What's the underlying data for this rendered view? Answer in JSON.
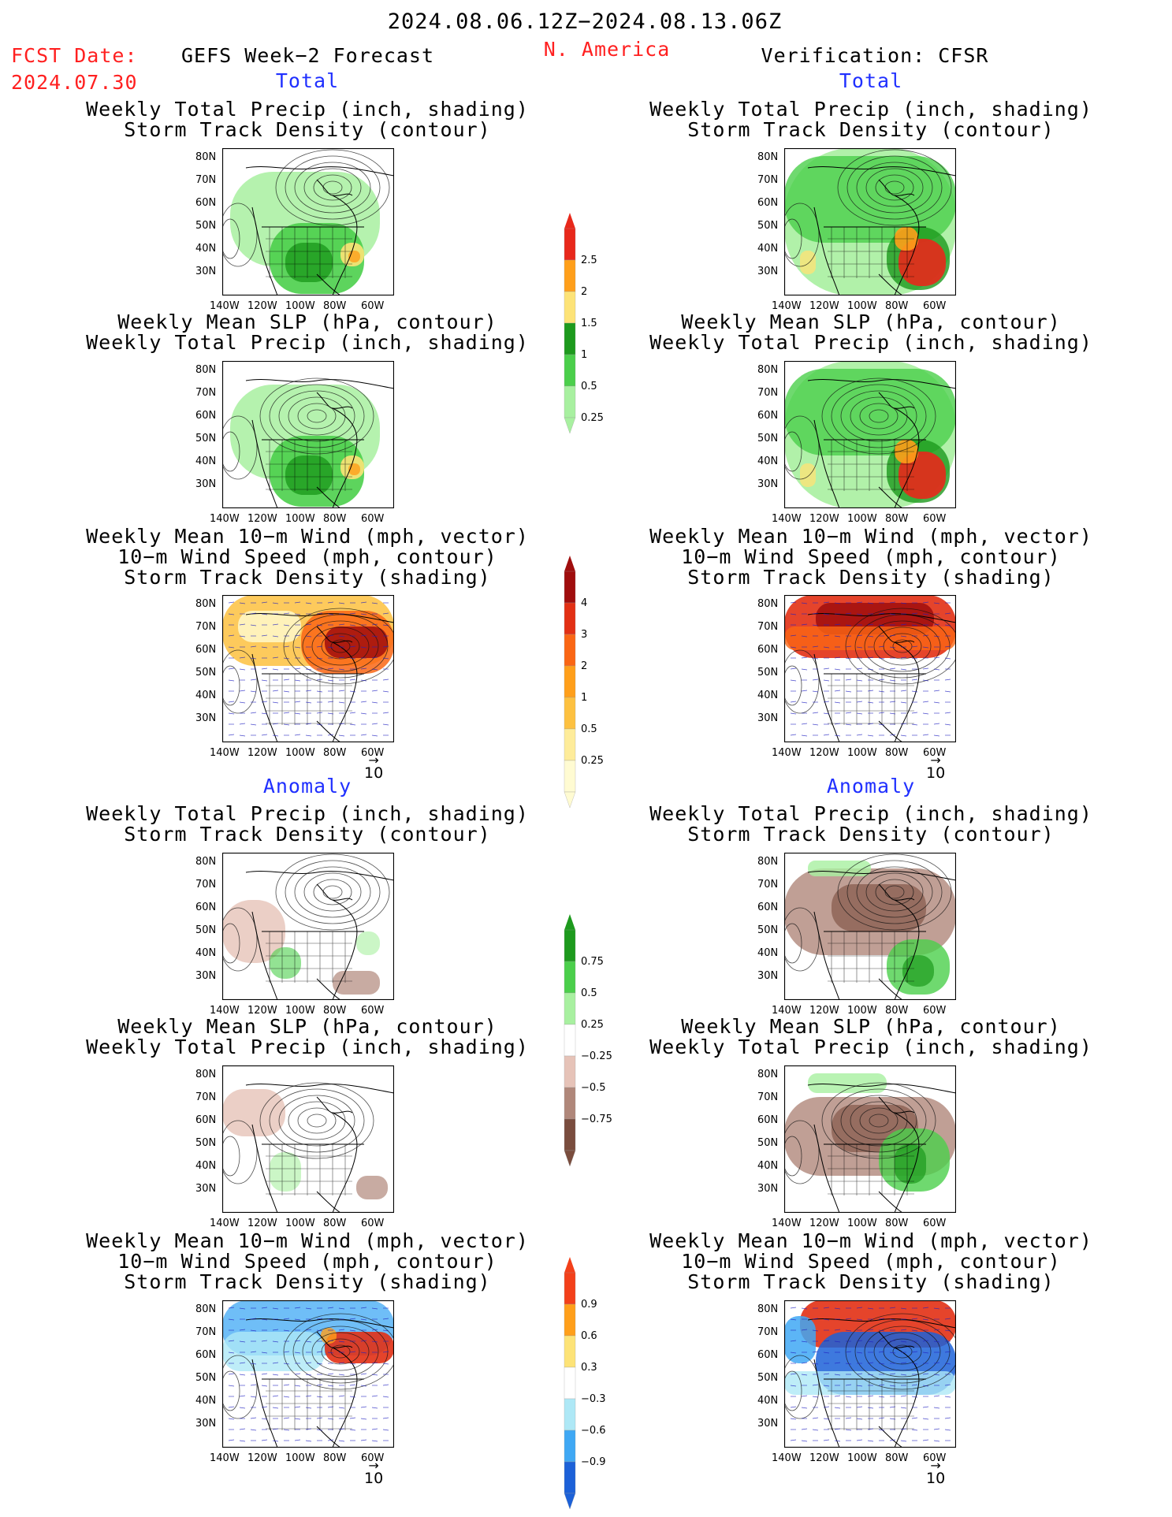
{
  "header": {
    "date_range": "2024.08.06.12Z−2024.08.13.06Z",
    "fcst_label": "FCST Date:",
    "fcst_date": "2024.07.30",
    "left_title": "GEFS Week−2 Forecast",
    "region": "N. America",
    "right_title": "Verification: CFSR"
  },
  "sections": {
    "total": "Total",
    "anomaly": "Anomaly"
  },
  "panel_titles": {
    "precip_track": [
      "Weekly Total Precip (inch, shading)",
      "Storm Track Density (contour)"
    ],
    "slp_precip": [
      "Weekly Mean SLP (hPa, contour)",
      "Weekly Total Precip (inch, shading)"
    ],
    "wind_track": [
      "Weekly Mean 10−m Wind (mph, vector)",
      "10−m Wind Speed (mph, contour)",
      "Storm Track Density (shading)"
    ]
  },
  "axes": {
    "lat_labels": [
      "80N",
      "70N",
      "60N",
      "50N",
      "40N",
      "30N"
    ],
    "lon_labels": [
      "140W",
      "120W",
      "100W",
      "80W",
      "60W"
    ]
  },
  "reference_vector": "10",
  "colorbars": {
    "precip_total": {
      "labels": [
        "2.5",
        "2",
        "1.5",
        "1",
        "0.5",
        "0.25"
      ],
      "colors": [
        "#e8281b",
        "#ff9f1a",
        "#fde377",
        "#1d9a1d",
        "#4bcf4b",
        "#a8f0a0"
      ]
    },
    "track_total": {
      "labels": [
        "4",
        "3",
        "2",
        "1",
        "0.5",
        "0.25"
      ],
      "colors": [
        "#a00d0d",
        "#e23014",
        "#fa6614",
        "#ff9f1a",
        "#fdc140",
        "#feec9a",
        "#fffbd2"
      ]
    },
    "precip_anom": {
      "labels": [
        "0.75",
        "0.5",
        "0.25",
        "−0.25",
        "−0.5",
        "−0.75"
      ],
      "colors": [
        "#1d9a1d",
        "#4bcf4b",
        "#a8f0a0",
        "#ffffff",
        "#e6c3b8",
        "#b0877a",
        "#7a4d3e"
      ]
    },
    "track_anom": {
      "labels": [
        "0.9",
        "0.6",
        "0.3",
        "−0.3",
        "−0.6",
        "−0.9"
      ],
      "colors": [
        "#f3401a",
        "#ff9f1a",
        "#fde377",
        "#ffffff",
        "#aee8f6",
        "#3fa8f4",
        "#1c61d8"
      ]
    }
  }
}
